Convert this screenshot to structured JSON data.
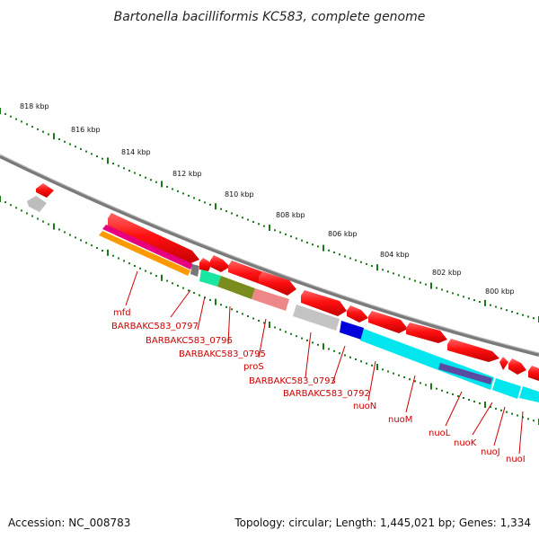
{
  "title": "Bartonella bacilliformis KC583, complete genome",
  "accession": "Accession: NC_008783",
  "summary": "Topology: circular; Length: 1,445,021 bp; Genes: 1,334",
  "scale_labels": [
    "818 kbp",
    "816 kbp",
    "814 kbp",
    "812 kbp",
    "810 kbp",
    "808 kbp",
    "806 kbp",
    "804 kbp",
    "802 kbp",
    "800 kbp"
  ],
  "gene_labels": [
    "mfd",
    "BARBAKC583_0797",
    "BARBAKC583_0796",
    "BARBAKC583_0795",
    "proS",
    "BARBAKC583_0793",
    "BARBAKC583_0792",
    "nuoN",
    "nuoM",
    "nuoL",
    "nuoK",
    "nuoJ",
    "nuoI"
  ],
  "colors": {
    "cds": "#e8000b",
    "backbone": "#888888",
    "scale_ticks": "#1a7a1a",
    "label": "#cc0000",
    "grey_feature": "#bdbdbd",
    "magenta": "#e6007e",
    "orange": "#ff9900",
    "teal": "#19e6a0",
    "olive": "#7a8c1e",
    "salmon": "#ee8888",
    "blue": "#0000dd",
    "cyan": "#00e6ee",
    "purple": "#5a4aa0"
  }
}
